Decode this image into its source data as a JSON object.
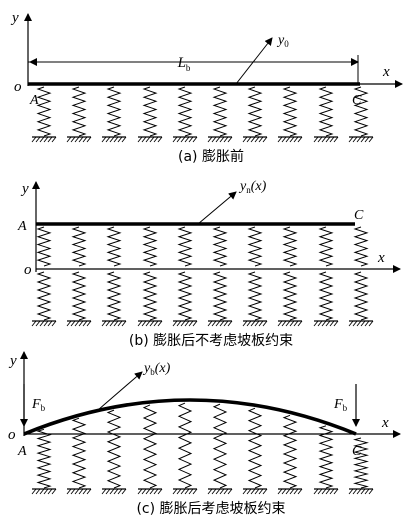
{
  "panels": [
    {
      "caption": "(a) 膨胀前",
      "y_axis": "y",
      "x_axis": "x",
      "origin": "o",
      "point_left": "A",
      "point_right": "C",
      "length_label": "L",
      "length_sub": "b",
      "disp_label": "y",
      "disp_sub": "0",
      "disp_arg": ""
    },
    {
      "caption": "(b) 膨胀后不考虑坡板约束",
      "y_axis": "y",
      "x_axis": "x",
      "origin": "o",
      "point_left": "A",
      "point_right": "C",
      "disp_label": "y",
      "disp_sub": "n",
      "disp_arg": "(x)"
    },
    {
      "caption": "(c) 膨胀后考虑坡板约束",
      "y_axis": "y",
      "x_axis": "x",
      "origin": "o",
      "point_left": "A",
      "point_right": "C",
      "force_left": "F",
      "force_left_sub": "b",
      "force_right": "F",
      "force_right_sub": "b",
      "disp_label": "y",
      "disp_sub": "b",
      "disp_arg": "(x)"
    }
  ]
}
